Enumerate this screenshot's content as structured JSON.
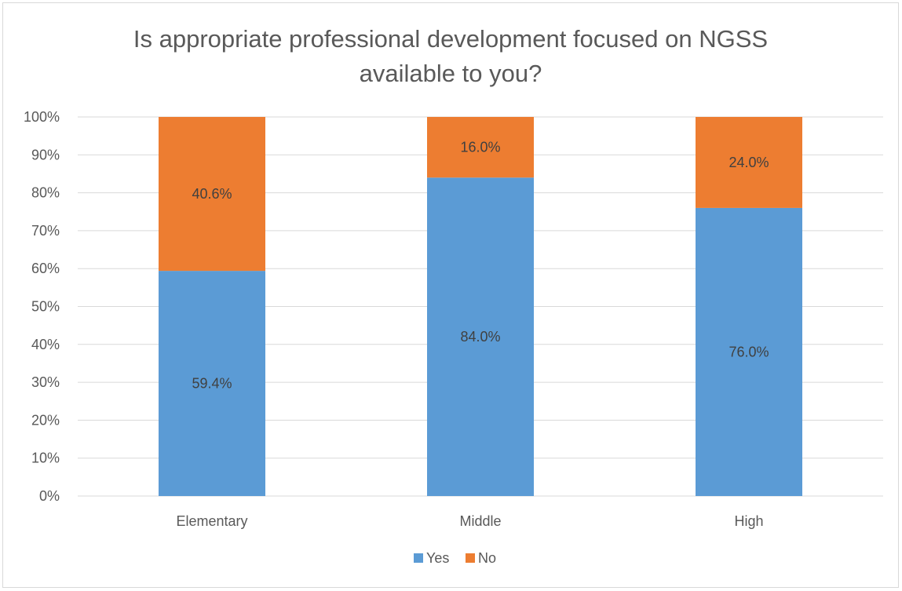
{
  "chart_data": {
    "type": "bar",
    "stacked": true,
    "title_lines": [
      "Is appropriate professional development focused on NGSS",
      "available to you?"
    ],
    "categories": [
      "Elementary",
      "Middle",
      "High"
    ],
    "series": [
      {
        "name": "Yes",
        "color": "#5b9bd5",
        "values": [
          59.4,
          84.0,
          76.0
        ],
        "labels": [
          "59.4%",
          "84.0%",
          "76.0%"
        ]
      },
      {
        "name": "No",
        "color": "#ed7d31",
        "values": [
          40.6,
          16.0,
          24.0
        ],
        "labels": [
          "40.6%",
          "16.0%",
          "24.0%"
        ]
      }
    ],
    "ylim": [
      0,
      100
    ],
    "yticks": [
      0,
      10,
      20,
      30,
      40,
      50,
      60,
      70,
      80,
      90,
      100
    ],
    "ytick_labels": [
      "0%",
      "10%",
      "20%",
      "30%",
      "40%",
      "50%",
      "60%",
      "70%",
      "80%",
      "90%",
      "100%"
    ],
    "grid": true,
    "legend_position": "bottom"
  }
}
